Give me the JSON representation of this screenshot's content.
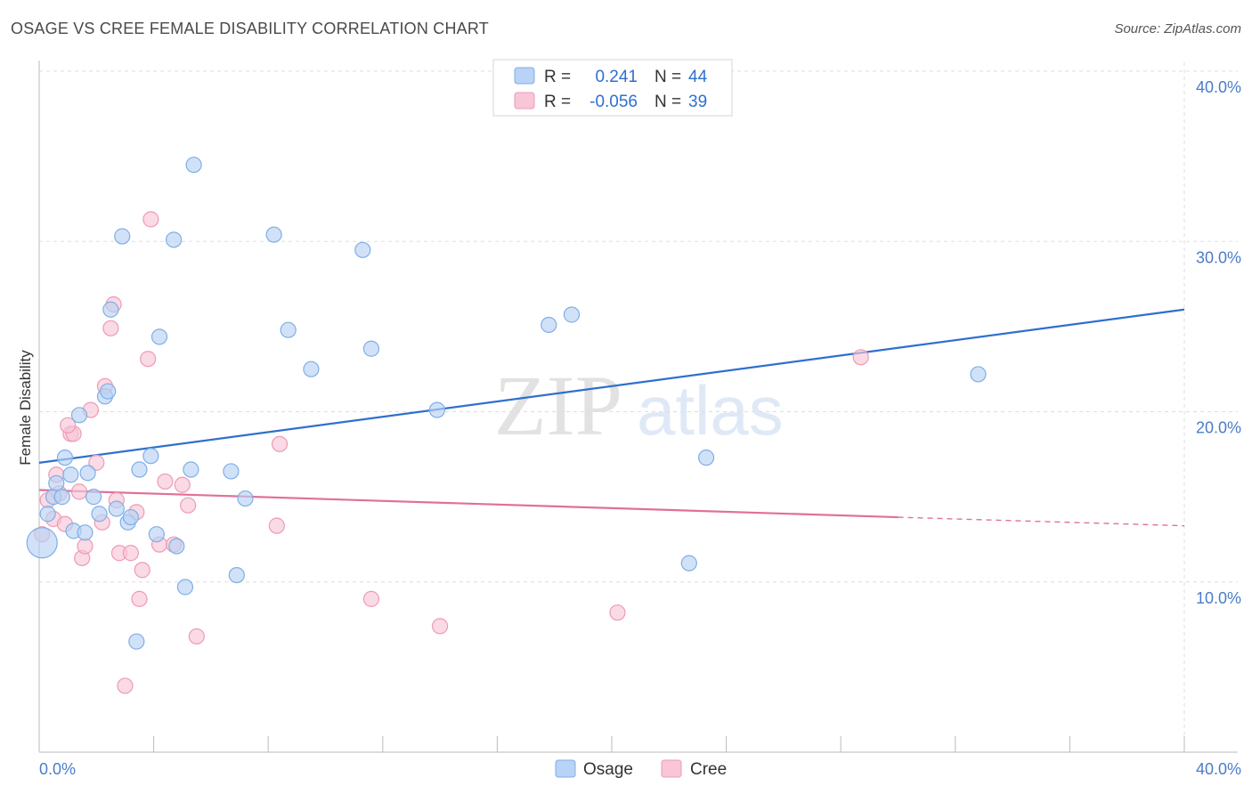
{
  "header": {
    "title": "OSAGE VS CREE FEMALE DISABILITY CORRELATION CHART",
    "source": "Source: ZipAtlas.com"
  },
  "watermark": {
    "zip": "ZIP",
    "atlas": "atlas"
  },
  "legend": {
    "rows": [
      {
        "r_label": "R =",
        "r_value": "0.241",
        "n_label": "N =",
        "n_value": "44"
      },
      {
        "r_label": "R =",
        "r_value": "-0.056",
        "n_label": "N =",
        "n_value": "39"
      }
    ]
  },
  "colors": {
    "osage_fill": "#b8d3f5",
    "osage_stroke": "#7faee6",
    "osage_line": "#2f6fce",
    "cree_fill": "#f8c6d6",
    "cree_stroke": "#ee9ab6",
    "cree_line": "#e0709a",
    "axis_text": "#4a7cc9",
    "grid": "#dddddd"
  },
  "chart_data": {
    "type": "scatter",
    "title": "OSAGE VS CREE FEMALE DISABILITY CORRELATION CHART",
    "xlabel": "",
    "ylabel": "Female Disability",
    "xlim": [
      0,
      40
    ],
    "ylim": [
      0,
      40
    ],
    "x_tick_labels": [
      "0.0%",
      "40.0%"
    ],
    "y_ticks": [
      10,
      20,
      30,
      40
    ],
    "y_tick_labels": [
      "10.0%",
      "20.0%",
      "30.0%",
      "40.0%"
    ],
    "grid": true,
    "legend_position": "bottom",
    "series": [
      {
        "name": "Osage",
        "r": 0.241,
        "n": 44,
        "trend": {
          "x0": 0,
          "y0": 17.0,
          "x1": 40,
          "y1": 26.0
        },
        "points": [
          [
            0.1,
            12.3
          ],
          [
            0.3,
            14.0
          ],
          [
            0.5,
            15.0
          ],
          [
            0.6,
            15.8
          ],
          [
            0.8,
            15.0
          ],
          [
            0.9,
            17.3
          ],
          [
            1.1,
            16.3
          ],
          [
            1.2,
            13.0
          ],
          [
            1.4,
            19.8
          ],
          [
            1.6,
            12.9
          ],
          [
            1.7,
            16.4
          ],
          [
            1.9,
            15.0
          ],
          [
            2.1,
            14.0
          ],
          [
            2.3,
            20.9
          ],
          [
            2.4,
            21.2
          ],
          [
            2.5,
            26.0
          ],
          [
            2.7,
            14.3
          ],
          [
            2.9,
            30.3
          ],
          [
            3.1,
            13.5
          ],
          [
            3.2,
            13.8
          ],
          [
            3.4,
            6.5
          ],
          [
            3.5,
            16.6
          ],
          [
            3.9,
            17.4
          ],
          [
            4.1,
            12.8
          ],
          [
            4.2,
            24.4
          ],
          [
            4.7,
            30.1
          ],
          [
            4.8,
            12.1
          ],
          [
            5.1,
            9.7
          ],
          [
            5.3,
            16.6
          ],
          [
            5.4,
            34.5
          ],
          [
            6.7,
            16.5
          ],
          [
            6.9,
            10.4
          ],
          [
            7.2,
            14.9
          ],
          [
            8.2,
            30.4
          ],
          [
            8.7,
            24.8
          ],
          [
            9.5,
            22.5
          ],
          [
            11.3,
            29.5
          ],
          [
            11.6,
            23.7
          ],
          [
            13.9,
            20.1
          ],
          [
            17.8,
            25.1
          ],
          [
            18.6,
            25.7
          ],
          [
            22.7,
            11.1
          ],
          [
            23.3,
            17.3
          ],
          [
            32.8,
            22.2
          ]
        ]
      },
      {
        "name": "Cree",
        "r": -0.056,
        "n": 39,
        "trend": {
          "x0": 0,
          "y0": 15.4,
          "x1": 30,
          "y1": 13.8,
          "dashed_to_x": 40,
          "dashed_to_y": 13.3
        },
        "points": [
          [
            0.1,
            12.8
          ],
          [
            0.3,
            14.8
          ],
          [
            0.5,
            13.7
          ],
          [
            0.6,
            16.3
          ],
          [
            0.7,
            15.2
          ],
          [
            0.9,
            13.4
          ],
          [
            1.1,
            18.7
          ],
          [
            1.2,
            18.7
          ],
          [
            1.4,
            15.3
          ],
          [
            1.5,
            11.4
          ],
          [
            1.6,
            12.1
          ],
          [
            1.8,
            20.1
          ],
          [
            2.0,
            17.0
          ],
          [
            2.2,
            13.5
          ],
          [
            2.3,
            21.5
          ],
          [
            2.5,
            24.9
          ],
          [
            2.6,
            26.3
          ],
          [
            2.7,
            14.8
          ],
          [
            2.8,
            11.7
          ],
          [
            3.0,
            3.9
          ],
          [
            3.2,
            11.7
          ],
          [
            3.4,
            14.1
          ],
          [
            3.5,
            9.0
          ],
          [
            3.6,
            10.7
          ],
          [
            3.8,
            23.1
          ],
          [
            3.9,
            31.3
          ],
          [
            4.2,
            12.2
          ],
          [
            4.4,
            15.9
          ],
          [
            4.7,
            12.2
          ],
          [
            5.0,
            15.7
          ],
          [
            5.2,
            14.5
          ],
          [
            5.5,
            6.8
          ],
          [
            8.3,
            13.3
          ],
          [
            8.4,
            18.1
          ],
          [
            11.6,
            9.0
          ],
          [
            14.0,
            7.4
          ],
          [
            20.2,
            8.2
          ],
          [
            28.7,
            23.2
          ],
          [
            1.0,
            19.2
          ]
        ]
      }
    ]
  },
  "bottom_legend": {
    "items": [
      {
        "label": "Osage"
      },
      {
        "label": "Cree"
      }
    ]
  }
}
